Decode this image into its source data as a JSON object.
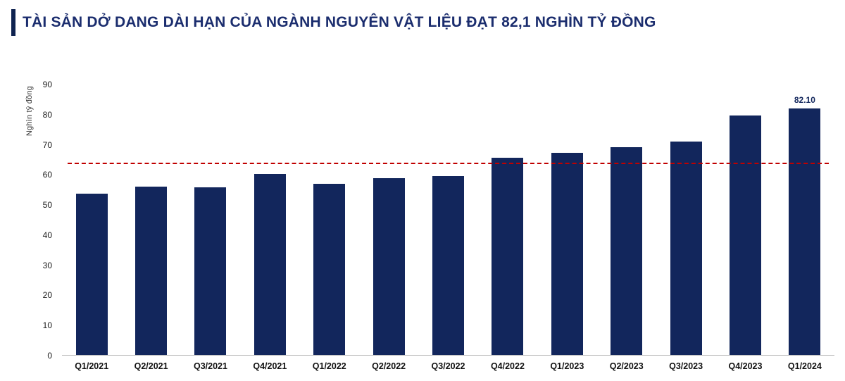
{
  "title": "TÀI SẢN DỞ DANG DÀI HẠN CỦA NGÀNH NGUYÊN VẬT LIỆU ĐẠT 82,1 NGHÌN TỶ ĐỒNG",
  "colors": {
    "bar": "#12265c",
    "title": "#1b2d6e",
    "accent_bar": "#0f2350",
    "reference_line": "#c00000"
  },
  "chart_data": {
    "type": "bar",
    "title": "TÀI SẢN DỞ DANG DÀI HẠN CỦA NGÀNH NGUYÊN VẬT LIỆU ĐẠT 82,1 NGHÌN TỶ ĐỒNG",
    "xlabel": "",
    "ylabel": "Nghìn tỷ đồng",
    "ylim": [
      0,
      90
    ],
    "ytick_step": 10,
    "yticks": [
      0,
      10,
      20,
      30,
      40,
      50,
      60,
      70,
      80,
      90
    ],
    "grid": false,
    "legend": false,
    "categories": [
      "Q1/2021",
      "Q2/2021",
      "Q3/2021",
      "Q4/2021",
      "Q1/2022",
      "Q2/2022",
      "Q3/2022",
      "Q4/2022",
      "Q1/2023",
      "Q2/2023",
      "Q3/2023",
      "Q4/2023",
      "Q1/2024"
    ],
    "values": [
      53.6,
      56.0,
      55.7,
      60.2,
      56.9,
      58.8,
      59.6,
      65.7,
      67.2,
      69.2,
      71.0,
      79.7,
      82.1
    ],
    "data_labels": [
      null,
      null,
      null,
      null,
      null,
      null,
      null,
      null,
      null,
      null,
      null,
      null,
      "82.10"
    ],
    "reference_line": {
      "value": 63.5,
      "style": "dashed",
      "color": "#c00000"
    },
    "bar_color": "#12265c"
  }
}
